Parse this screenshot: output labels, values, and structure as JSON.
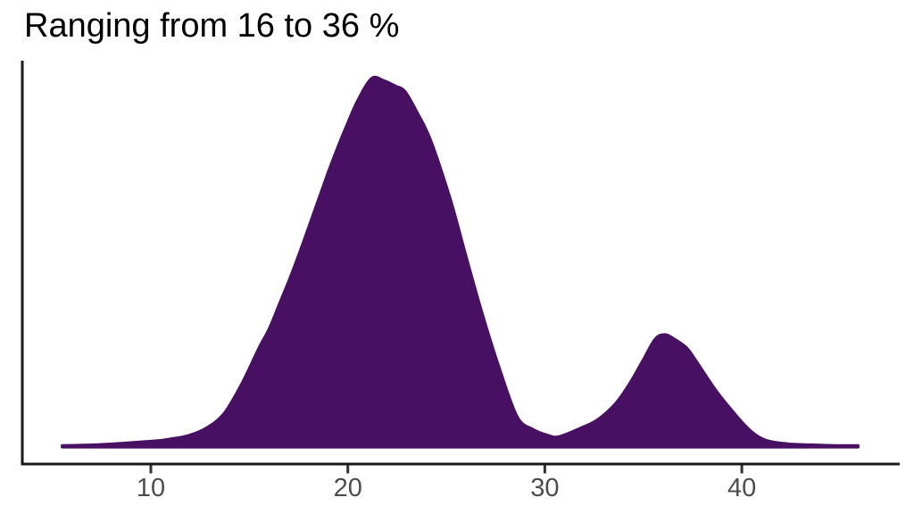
{
  "title": "Ranging from 16 to 36 %",
  "chart_data": {
    "type": "area",
    "subtype": "density",
    "title": "Ranging from 16 to 36 %",
    "xlabel": "",
    "ylabel": "",
    "x_ticks": [
      10,
      20,
      30,
      40
    ],
    "xlim": [
      5.5,
      45.9
    ],
    "ylim": [
      0,
      1.05
    ],
    "grid": false,
    "legend": "none",
    "fill_color": "#481063",
    "outline_color": "#481063",
    "axis_color": "#1a1a1a",
    "tick_color": "#333333",
    "tick_label_color": "#4d4d4d",
    "background_color": "#ffffff",
    "peaks": [
      {
        "x": 21.2,
        "rel_height": 1.0
      },
      {
        "x": 36.0,
        "rel_height": 0.305
      }
    ],
    "valley": {
      "x": 30.7,
      "rel_height": 0.028
    },
    "density_points": [
      [
        5.5,
        0.004
      ],
      [
        6.5,
        0.005
      ],
      [
        7.5,
        0.007
      ],
      [
        8.5,
        0.01
      ],
      [
        9.5,
        0.014
      ],
      [
        10.3,
        0.017
      ],
      [
        11.0,
        0.022
      ],
      [
        11.9,
        0.031
      ],
      [
        12.8,
        0.051
      ],
      [
        13.7,
        0.09
      ],
      [
        14.6,
        0.17
      ],
      [
        15.5,
        0.27
      ],
      [
        16.0,
        0.32
      ],
      [
        16.5,
        0.385
      ],
      [
        17.0,
        0.45
      ],
      [
        17.5,
        0.52
      ],
      [
        18.0,
        0.595
      ],
      [
        18.5,
        0.67
      ],
      [
        19.0,
        0.745
      ],
      [
        19.5,
        0.815
      ],
      [
        20.0,
        0.88
      ],
      [
        20.5,
        0.94
      ],
      [
        21.2,
        1.0
      ],
      [
        21.8,
        0.995
      ],
      [
        22.4,
        0.98
      ],
      [
        22.9,
        0.965
      ],
      [
        23.5,
        0.91
      ],
      [
        24.2,
        0.833
      ],
      [
        25.2,
        0.673
      ],
      [
        26.0,
        0.518
      ],
      [
        26.8,
        0.366
      ],
      [
        27.7,
        0.213
      ],
      [
        28.6,
        0.082
      ],
      [
        29.4,
        0.048
      ],
      [
        30.1,
        0.033
      ],
      [
        30.7,
        0.028
      ],
      [
        31.8,
        0.051
      ],
      [
        32.7,
        0.075
      ],
      [
        33.6,
        0.119
      ],
      [
        34.3,
        0.172
      ],
      [
        35.0,
        0.237
      ],
      [
        35.6,
        0.293
      ],
      [
        36.1,
        0.305
      ],
      [
        36.6,
        0.292
      ],
      [
        37.2,
        0.269
      ],
      [
        37.7,
        0.232
      ],
      [
        38.6,
        0.16
      ],
      [
        39.5,
        0.099
      ],
      [
        40.4,
        0.046
      ],
      [
        41.2,
        0.019
      ],
      [
        42.3,
        0.009
      ],
      [
        43.5,
        0.006
      ],
      [
        44.8,
        0.004
      ],
      [
        45.9,
        0.004
      ]
    ]
  }
}
